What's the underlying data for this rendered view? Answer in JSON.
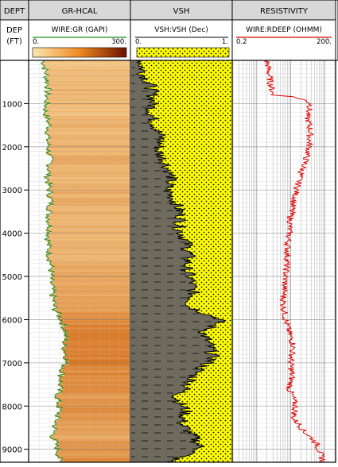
{
  "tracks": {
    "depth": {
      "title": "DEPT",
      "header_line1": "DEP",
      "header_line2": "(FT)"
    },
    "gr": {
      "title": "GR-HCAL",
      "curve_label": "WIRE:GR (GAPI)",
      "scale_min": "0.",
      "scale_max": "300."
    },
    "vsh": {
      "title": "VSH",
      "curve_label": "VSH:VSH (Dec)",
      "scale_min": "0.",
      "scale_max": "1."
    },
    "res": {
      "title": "RESISTIVITY",
      "curve_label": "WIRE:RDEEP (OHMM)",
      "scale_min": "0.2",
      "scale_max": "200."
    }
  },
  "depth_ticks": [
    "1000",
    "2000",
    "3000",
    "4000",
    "5000",
    "6000",
    "7000",
    "8000",
    "9000"
  ],
  "colors": {
    "gr_curve": "#1e8a1e",
    "gr_fill_light": "#f8d090",
    "gr_fill_dark": "#d05a00",
    "shale": "#6e6a5e",
    "sand": "#ffff00",
    "res_curve": "#e00000",
    "grid": "#bdbdbd"
  },
  "chart_data": {
    "type": "line",
    "y_axis": {
      "label": "DEP (FT)",
      "range": [
        0,
        9300
      ],
      "inverted": true
    },
    "series": [
      {
        "name": "WIRE:GR (GAPI)",
        "x_range": [
          0,
          300
        ],
        "depth": [
          0,
          300,
          600,
          900,
          1200,
          1500,
          1800,
          2100,
          2400,
          2700,
          3000,
          3300,
          3600,
          3900,
          4200,
          4500,
          4800,
          5100,
          5400,
          5700,
          6000,
          6300,
          6600,
          6900,
          7200,
          7500,
          7800,
          8100,
          8400,
          8700,
          9000,
          9300
        ],
        "values": [
          42,
          50,
          56,
          52,
          48,
          60,
          54,
          58,
          62,
          55,
          60,
          64,
          58,
          62,
          56,
          60,
          66,
          64,
          70,
          74,
          96,
          110,
          104,
          112,
          98,
          92,
          84,
          90,
          78,
          70,
          86,
          90
        ]
      },
      {
        "name": "VSH:VSH (Dec)",
        "x_range": [
          0,
          1
        ],
        "depth": [
          0,
          300,
          600,
          900,
          1200,
          1500,
          1800,
          2100,
          2400,
          2700,
          3000,
          3300,
          3600,
          3900,
          4200,
          4500,
          4800,
          5100,
          5400,
          5700,
          6000,
          6300,
          6600,
          6900,
          7200,
          7500,
          7800,
          8100,
          8400,
          8700,
          9000,
          9300
        ],
        "values": [
          0.1,
          0.12,
          0.2,
          0.22,
          0.2,
          0.24,
          0.3,
          0.27,
          0.35,
          0.4,
          0.36,
          0.45,
          0.5,
          0.48,
          0.55,
          0.58,
          0.55,
          0.6,
          0.62,
          0.58,
          0.9,
          0.72,
          0.78,
          0.82,
          0.65,
          0.58,
          0.45,
          0.55,
          0.5,
          0.62,
          0.7,
          0.35
        ]
      },
      {
        "name": "WIRE:RDEEP (OHMM)",
        "x_range": [
          0.2,
          200
        ],
        "x_scale": "log",
        "depth": [
          0,
          500,
          800,
          1000,
          1300,
          1600,
          2000,
          2300,
          2600,
          3000,
          3300,
          3600,
          4000,
          4300,
          4600,
          5000,
          5300,
          5600,
          6000,
          6300,
          6600,
          7000,
          7300,
          7600,
          8000,
          8300,
          8600,
          8900,
          9300
        ],
        "values": [
          2,
          2.5,
          3,
          40,
          30,
          38,
          35,
          28,
          20,
          15,
          12,
          10,
          9,
          8,
          8,
          7,
          6.5,
          6,
          7,
          9,
          12,
          10,
          11,
          9,
          14,
          12,
          25,
          60,
          90
        ]
      }
    ]
  }
}
